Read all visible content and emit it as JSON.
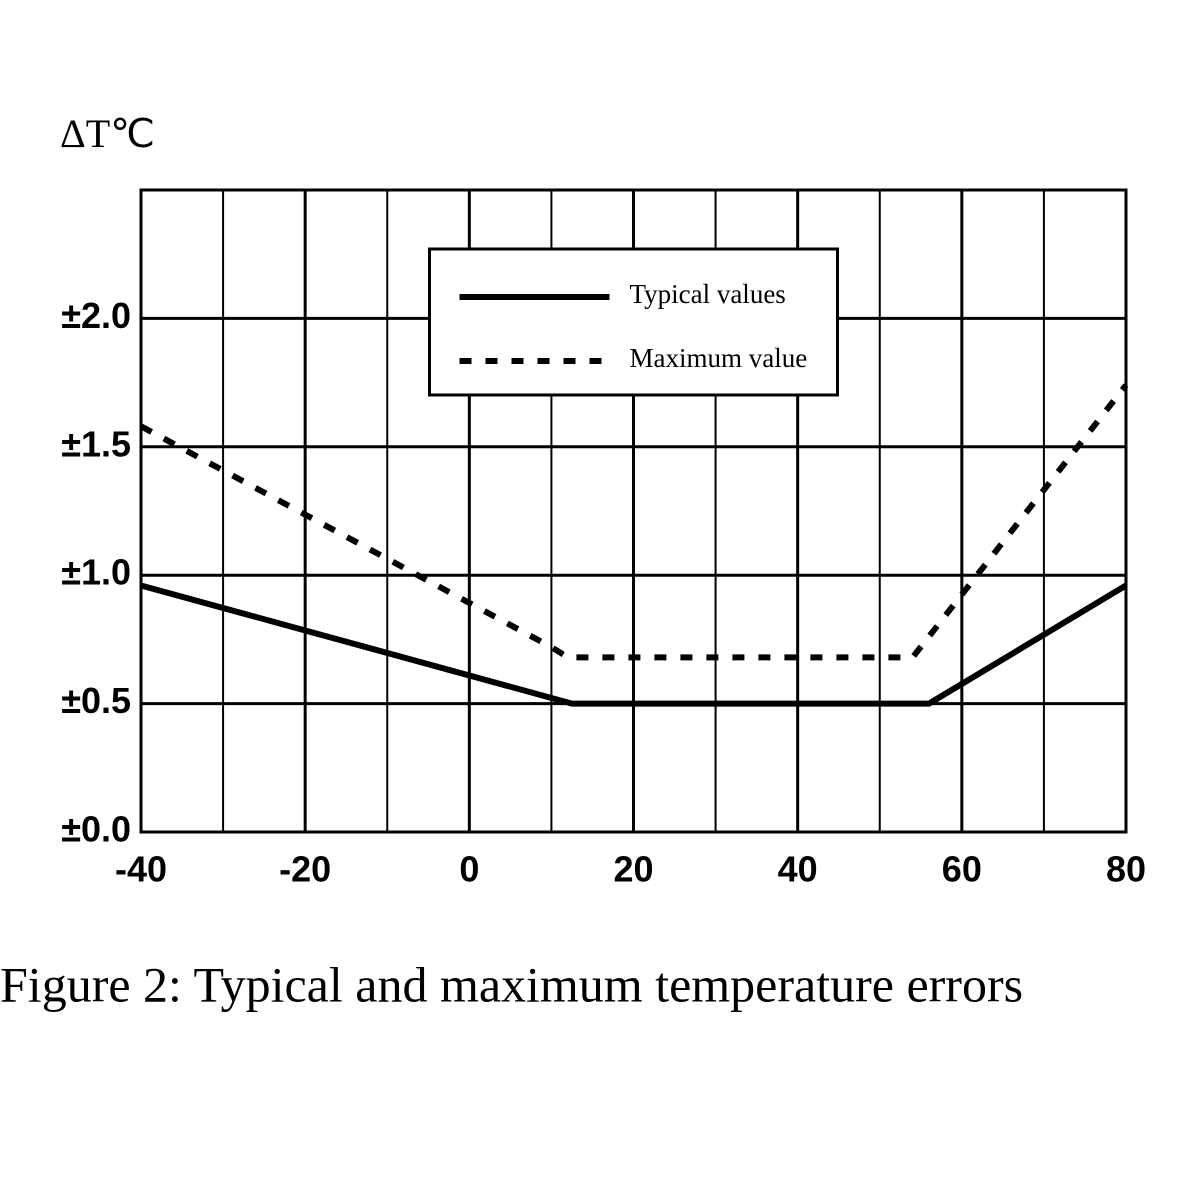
{
  "chart_data": {
    "type": "line",
    "y_label": "ΔT℃",
    "caption": "Figure 2:  Typical and maximum temperature errors",
    "xlim": [
      -40,
      80
    ],
    "xticks": [
      -40,
      -20,
      0,
      20,
      40,
      60,
      80
    ],
    "xminor": [
      -30,
      -10,
      10,
      30,
      50,
      70
    ],
    "ylim": [
      0,
      2.5
    ],
    "yticks": [
      {
        "value": 0,
        "label": "±0.0"
      },
      {
        "value": 0.5,
        "label": "±0.5"
      },
      {
        "value": 1.0,
        "label": "±1.0"
      },
      {
        "value": 1.5,
        "label": "±1.5"
      },
      {
        "value": 2.0,
        "label": "±2.0"
      }
    ],
    "grid": true,
    "legend": "top-center",
    "series": [
      {
        "name": "Typical values",
        "color": "#000000",
        "style": "solid",
        "x": [
          -40,
          12.5,
          56,
          80
        ],
        "values": [
          0.96,
          0.5,
          0.5,
          0.96
        ]
      },
      {
        "name": "Maximum value",
        "color": "#000000",
        "style": "dashed",
        "x": [
          -40,
          10,
          12,
          54,
          80
        ],
        "values": [
          1.58,
          0.72,
          0.68,
          0.68,
          1.74
        ]
      }
    ]
  }
}
